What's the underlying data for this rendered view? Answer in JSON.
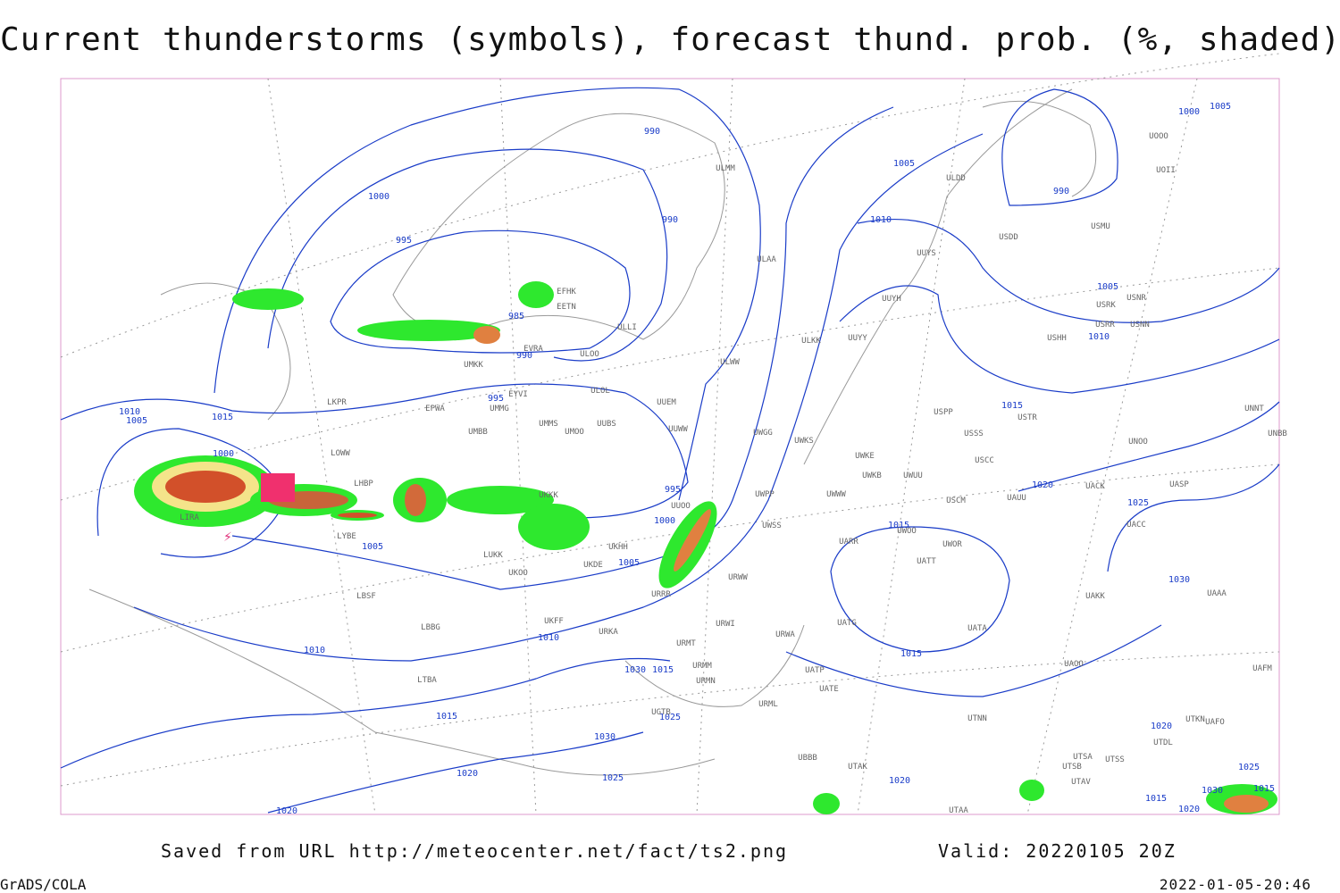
{
  "header": {
    "title": "Current thunderstorms (symbols), forecast thund. prob. (%, shaded)"
  },
  "footer": {
    "source": "Saved from URL http://meteocenter.net/fact/ts2.png",
    "valid": "Valid: 20220105 20Z",
    "software": "GrADS/COLA",
    "timestamp": "2022-01-05-20:46"
  },
  "map": {
    "isobar_labels": [
      990,
      1000,
      995,
      990,
      985,
      990,
      995,
      1005,
      990,
      1000,
      1005,
      1010,
      1005,
      1010,
      1015,
      1020,
      1025,
      1030,
      1015,
      1015,
      1010,
      1005,
      1015,
      1000,
      995,
      1000,
      1005,
      1005,
      1010,
      1010,
      1015,
      1020,
      1020,
      1025,
      1030,
      1030,
      1015,
      1025,
      1020,
      1020,
      1015,
      1020,
      1030,
      1025,
      1015
    ],
    "stations": [
      "ULMM",
      "ULAA",
      "ULLI",
      "ULOO",
      "ULOL",
      "UUEM",
      "UUWW",
      "UMMS",
      "UMOO",
      "UUBS",
      "UMBB",
      "UMMG",
      "EYVI",
      "EPWA",
      "LKPR",
      "LOWW",
      "LHBP",
      "LIRA",
      "LYBE",
      "LBSF",
      "LBBG",
      "LTBA",
      "UKKK",
      "UKHH",
      "LUKK",
      "UKOO",
      "UKDE",
      "URRR",
      "UKFF",
      "URKA",
      "URMT",
      "URMM",
      "URMN",
      "UGTB",
      "UUOO",
      "URWW",
      "URWA",
      "URWI",
      "URML",
      "UATG",
      "UATE",
      "UATP",
      "UARR",
      "UWWW",
      "UWPP",
      "UWSS",
      "UWKS",
      "UWGG",
      "UWKE",
      "UWKB",
      "UWUU",
      "UWOO",
      "UWOR",
      "UATT",
      "USCM",
      "UAUU",
      "UACK",
      "UASP",
      "UACC",
      "UAKK",
      "UAAA",
      "UATA",
      "UAOO",
      "UTAA",
      "UTAK",
      "UTNN",
      "UTSA",
      "UTSS",
      "UTSB",
      "UTAV",
      "UTDL",
      "UTKN",
      "UAFM",
      "UAFO",
      "USPP",
      "USSS",
      "USCC",
      "USTR",
      "UNOO",
      "UNNT",
      "UNBB",
      "USRR",
      "USNN",
      "USRK",
      "USNR",
      "USHH",
      "USMU",
      "USDD",
      "UOII",
      "UOOO",
      "ULDD",
      "UUYS",
      "UUYH",
      "UUYY",
      "ULKK",
      "ULWW",
      "UBBB",
      "UMKK",
      "EFHK",
      "EETN",
      "EVRA"
    ]
  }
}
